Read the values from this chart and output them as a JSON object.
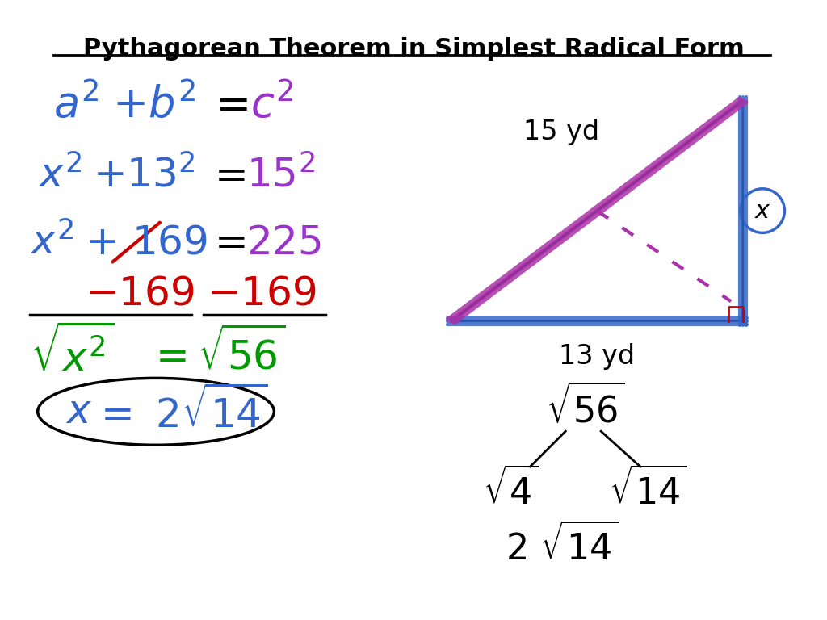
{
  "title": "Pythagorean Theorem in Simplest Radical Form",
  "bg_color": "#ffffff",
  "title_color": "#000000",
  "blue": "#3366cc",
  "purple": "#9933cc",
  "red": "#cc0000",
  "green": "#009900",
  "black": "#000000",
  "magenta": "#cc44cc"
}
